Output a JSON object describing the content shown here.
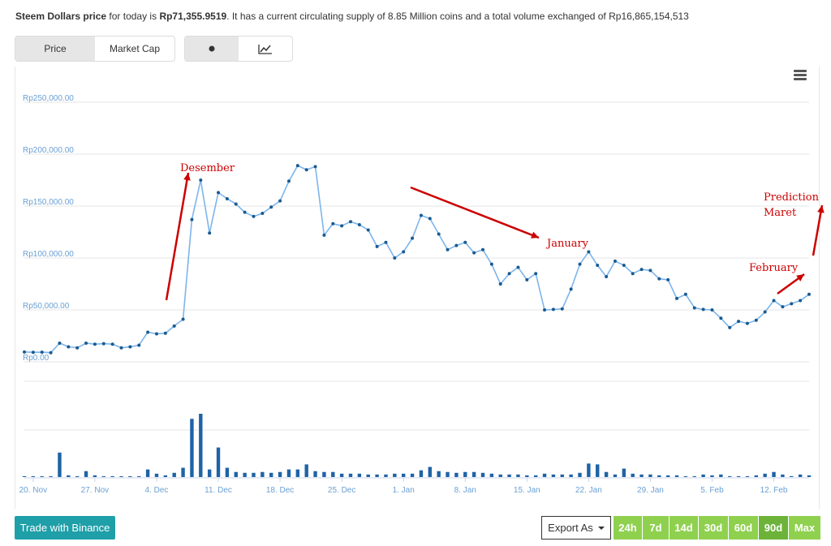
{
  "summary": {
    "coin_name": "Steem Dollars price",
    "text_1": " for today is ",
    "price": "Rp71,355.9519",
    "text_2": ". It has a current circulating supply of 8.85 Million coins and a total volume exchanged of Rp16,865,154,513"
  },
  "metric_tabs": [
    "Price",
    "Market Cap"
  ],
  "view_tabs": [
    {
      "icon": "dot-icon"
    },
    {
      "icon": "line-chart-icon"
    }
  ],
  "menu": {
    "icon": "hamburger-menu-icon"
  },
  "trade_button": "Trade with Binance",
  "export_button": "Export As",
  "ranges": [
    "24h",
    "7d",
    "14d",
    "30d",
    "60d",
    "90d",
    "Max"
  ],
  "active_range": "90d",
  "colors": {
    "line": "#7cb5ec",
    "marker": "#1a5a8f",
    "volume": "#1f63a6",
    "annotation": "#cc0000",
    "axis_label": "#6aa0d4",
    "grid": "#e6e6e6",
    "trade_button": "#1f9fa8",
    "range_button": "#8fd14f",
    "range_active": "#6db33a"
  },
  "chart_data": {
    "type": "line",
    "y_axis": {
      "min": 0,
      "max": 250000,
      "ticks": [
        0,
        50000,
        100000,
        150000,
        200000,
        250000
      ],
      "tick_labels": [
        "Rp0.00",
        "Rp50,000.00",
        "Rp100,000.00",
        "Rp150,000.00",
        "Rp200,000.00",
        "Rp250,000.00"
      ]
    },
    "x_axis": {
      "start": "2017-11-19",
      "end": "2018-02-16",
      "tick_labels": [
        "20. Nov",
        "27. Nov",
        "4. Dec",
        "11. Dec",
        "18. Dec",
        "25. Dec",
        "1. Jan",
        "8. Jan",
        "15. Jan",
        "22. Jan",
        "29. Jan",
        "5. Feb",
        "12. Feb"
      ],
      "tick_dates": [
        "2017-11-20",
        "2017-11-27",
        "2017-12-04",
        "2017-12-11",
        "2017-12-18",
        "2017-12-25",
        "2018-01-01",
        "2018-01-08",
        "2018-01-15",
        "2018-01-22",
        "2018-01-29",
        "2018-02-05",
        "2018-02-12"
      ]
    },
    "series": [
      {
        "type": "line",
        "values": [
          9500,
          9200,
          9300,
          8800,
          18000,
          14500,
          13500,
          18000,
          17000,
          17500,
          17000,
          13500,
          14500,
          16000,
          28500,
          27000,
          27500,
          34500,
          41000,
          137000,
          175000,
          124000,
          163000,
          157000,
          152000,
          144000,
          140000,
          143000,
          149000,
          155000,
          174000,
          189000,
          185000,
          188000,
          122000,
          133000,
          131000,
          135000,
          132000,
          127000,
          111000,
          115000,
          100000,
          106000,
          119000,
          141000,
          138000,
          123000,
          108000,
          112000,
          115000,
          105000,
          108000,
          94000,
          75000,
          85000,
          91000,
          79000,
          85000,
          50000,
          50500,
          51000,
          70000,
          94000,
          106000,
          93000,
          82000,
          97000,
          93000,
          85000,
          89000,
          88000,
          80000,
          79000,
          61000,
          65000,
          52000,
          50500,
          50000,
          42000,
          33000,
          39000,
          37000,
          40000,
          48000,
          59000,
          53000,
          56000,
          59000,
          65000
        ]
      },
      {
        "type": "column",
        "name": "volume",
        "values": [
          1,
          1,
          1,
          1,
          29,
          2,
          1,
          7,
          2,
          1,
          1,
          1,
          1,
          1,
          9,
          4,
          2,
          5,
          11,
          69,
          75,
          9,
          35,
          11,
          6,
          5,
          5,
          6,
          5,
          6,
          9,
          9,
          15,
          7,
          6,
          6,
          4,
          4,
          4,
          3,
          3,
          3,
          4,
          4,
          4,
          8,
          12,
          7,
          6,
          5,
          6,
          6,
          5,
          4,
          3,
          3,
          3,
          2,
          2,
          4,
          3,
          3,
          3,
          5,
          16,
          15,
          6,
          3,
          10,
          4,
          3,
          3,
          2,
          2,
          2,
          1,
          1,
          3,
          2,
          3,
          1,
          1,
          1,
          2,
          4,
          6,
          3,
          1,
          3,
          2
        ]
      }
    ],
    "annotations": [
      {
        "text": "Desember"
      },
      {
        "text": "January"
      },
      {
        "text": "Prediction"
      },
      {
        "text": "Maret"
      },
      {
        "text": "February"
      }
    ]
  }
}
